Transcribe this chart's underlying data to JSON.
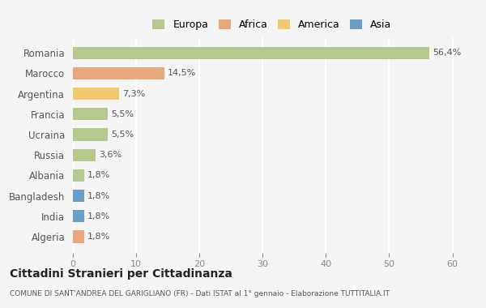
{
  "categories": [
    "Romania",
    "Marocco",
    "Argentina",
    "Francia",
    "Ucraina",
    "Russia",
    "Albania",
    "Bangladesh",
    "India",
    "Algeria"
  ],
  "values": [
    56.4,
    14.5,
    7.3,
    5.5,
    5.5,
    3.6,
    1.8,
    1.8,
    1.8,
    1.8
  ],
  "labels": [
    "56,4%",
    "14,5%",
    "7,3%",
    "5,5%",
    "5,5%",
    "3,6%",
    "1,8%",
    "1,8%",
    "1,8%",
    "1,8%"
  ],
  "colors": [
    "#b5c98e",
    "#e8a87c",
    "#f0c96e",
    "#b5c98e",
    "#b5c98e",
    "#b5c98e",
    "#b5c98e",
    "#6a9ec5",
    "#6a9ec5",
    "#e8a87c"
  ],
  "legend_labels": [
    "Europa",
    "Africa",
    "America",
    "Asia"
  ],
  "legend_colors": [
    "#b5c98e",
    "#e8a87c",
    "#f0c96e",
    "#6a9ec5"
  ],
  "title": "Cittadini Stranieri per Cittadinanza",
  "subtitle": "COMUNE DI SANT'ANDREA DEL GARIGLIANO (FR) - Dati ISTAT al 1° gennaio - Elaborazione TUTTITALIA.IT",
  "xlim": [
    0,
    63
  ],
  "xticks": [
    0,
    10,
    20,
    30,
    40,
    50,
    60
  ],
  "background_color": "#f5f5f5",
  "grid_color": "#ffffff",
  "bar_height": 0.6
}
